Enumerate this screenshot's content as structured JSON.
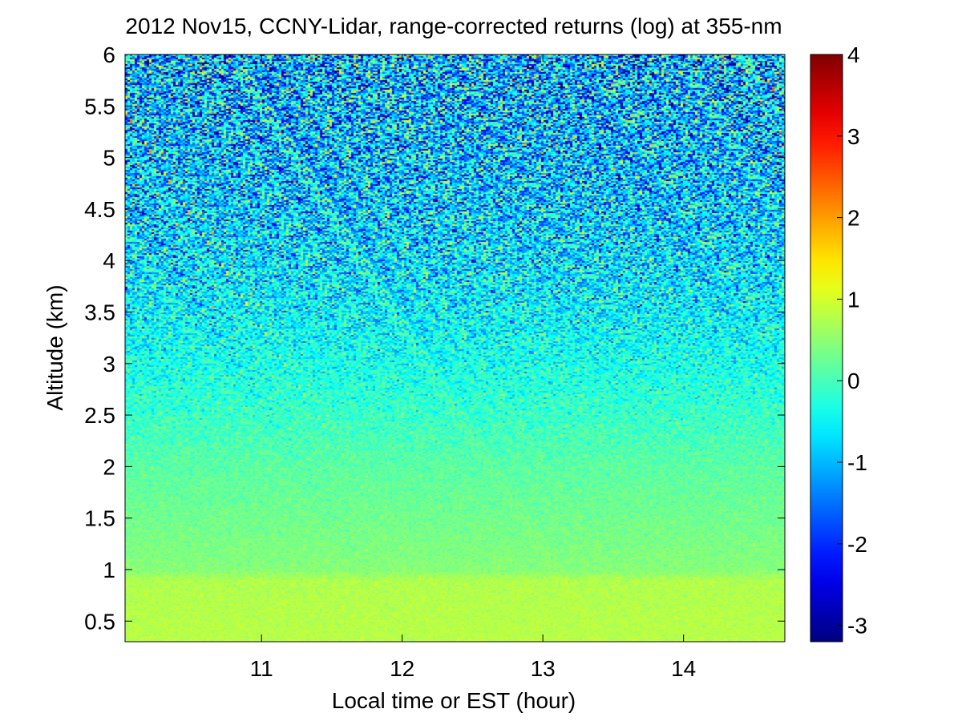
{
  "chart_data": {
    "type": "heatmap",
    "title": "2012 Nov15, CCNY-Lidar, range-corrected returns (log) at 355-nm",
    "xlabel": "Local time or EST (hour)",
    "ylabel": "Altitude (km)",
    "xlim": [
      10.03,
      14.72
    ],
    "ylim": [
      0.3,
      6
    ],
    "x_ticks": [
      11,
      12,
      13,
      14
    ],
    "y_ticks": [
      0.5,
      1,
      1.5,
      2,
      2.5,
      3,
      3.5,
      4,
      4.5,
      5,
      5.5,
      6
    ],
    "colorbar": {
      "colormap": "jet",
      "range": [
        -3.2,
        4
      ],
      "ticks": [
        -3,
        -2,
        -1,
        0,
        1,
        2,
        3,
        4
      ]
    },
    "mean_profile": [
      {
        "altitude": 0.3,
        "value": 0.8
      },
      {
        "altitude": 0.9,
        "value": 0.75
      },
      {
        "altitude": 1.0,
        "value": 0.45
      },
      {
        "altitude": 1.5,
        "value": 0.3
      },
      {
        "altitude": 2.0,
        "value": 0.15
      },
      {
        "altitude": 2.5,
        "value": -0.1
      },
      {
        "altitude": 3.0,
        "value": -0.35
      },
      {
        "altitude": 3.5,
        "value": -0.55
      },
      {
        "altitude": 4.0,
        "value": -0.7
      },
      {
        "altitude": 4.5,
        "value": -0.85
      },
      {
        "altitude": 5.0,
        "value": -0.95
      },
      {
        "altitude": 6.0,
        "value": -1.05
      }
    ],
    "noise_profile": [
      {
        "altitude": 0.3,
        "std": 0.08
      },
      {
        "altitude": 2.0,
        "std": 0.15
      },
      {
        "altitude": 3.0,
        "std": 0.4
      },
      {
        "altitude": 4.0,
        "std": 0.8
      },
      {
        "altitude": 6.0,
        "std": 1.3
      }
    ],
    "grid": false
  }
}
